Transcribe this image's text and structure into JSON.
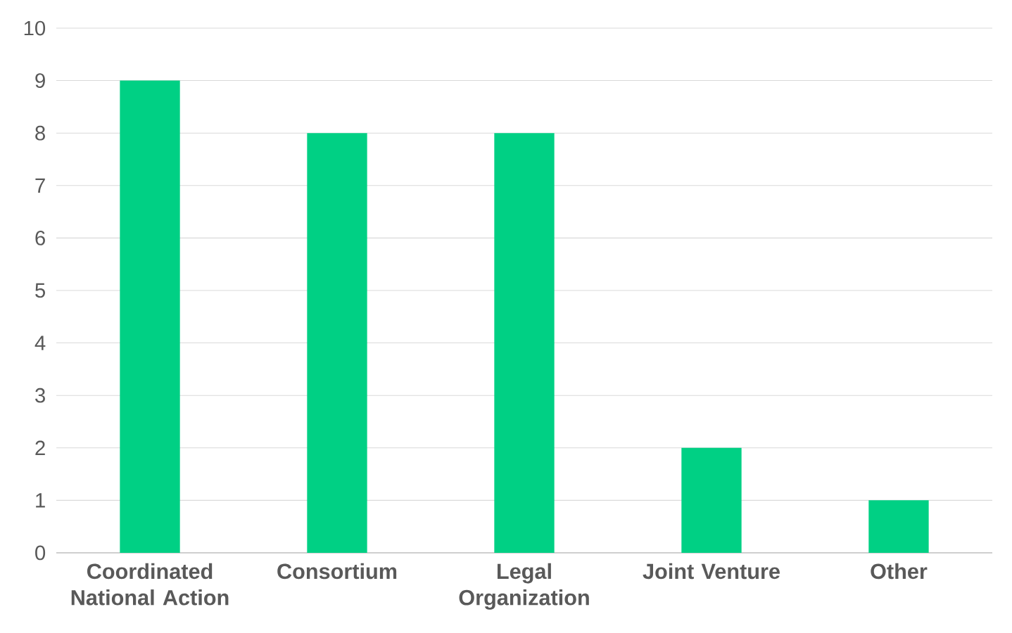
{
  "chart_data": {
    "type": "bar",
    "categories": [
      "Coordinated National Action",
      "Consortium",
      "Legal Organization",
      "Joint Venture",
      "Other"
    ],
    "values": [
      9,
      8,
      8,
      2,
      1
    ],
    "color": "#00d084",
    "ylim": [
      0,
      10
    ],
    "yticks": [
      0,
      1,
      2,
      3,
      4,
      5,
      6,
      7,
      8,
      9,
      10
    ],
    "grid": "y"
  }
}
